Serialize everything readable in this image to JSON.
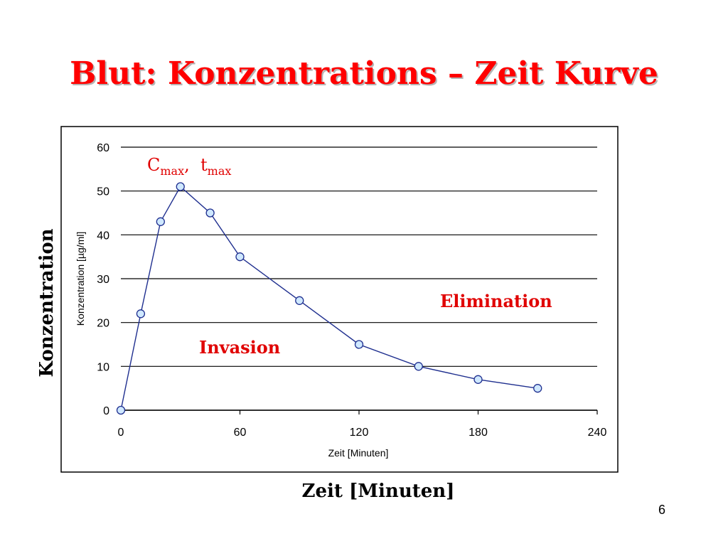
{
  "slide": {
    "title": "Blut: Konzentrations – Zeit Kurve",
    "outer_ylabel": "Konzentration",
    "outer_xlabel": "Zeit [Minuten]",
    "page_number": "6"
  },
  "annotations": {
    "peak_c": "C",
    "peak_c_sub": "max",
    "peak_sep": ",  ",
    "peak_t": "t",
    "peak_t_sub": "max",
    "invasion": "Invasion",
    "elimination": "Elimination"
  },
  "colors": {
    "title": "#ff0000",
    "annotation": "#e00000",
    "line": "#1f2f8f",
    "marker_fill": "#cfe8ff",
    "marker_stroke": "#1f2f8f",
    "grid": "#000000"
  },
  "chart_data": {
    "type": "scatter",
    "xlabel": "Zeit [Minuten]",
    "ylabel": "Konzentration [µg/ml]",
    "xlim": [
      0,
      240
    ],
    "ylim": [
      0,
      60
    ],
    "x_ticks": [
      0,
      60,
      120,
      180,
      240
    ],
    "y_ticks": [
      0,
      10,
      20,
      30,
      40,
      50,
      60
    ],
    "grid": "horizontal",
    "legend": "none",
    "series": [
      {
        "x": [
          0,
          10,
          20,
          30,
          45,
          60,
          90,
          120,
          150,
          180,
          210
        ],
        "y": [
          0,
          22,
          43,
          51,
          45,
          35,
          25,
          15,
          10,
          7,
          5
        ]
      }
    ]
  }
}
